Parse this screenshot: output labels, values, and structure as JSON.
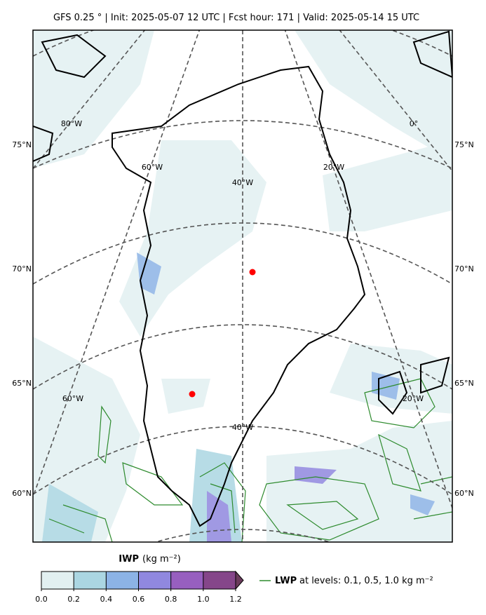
{
  "header": {
    "title": "GFS 0.25 °  |  Init: 2025-05-07 12 UTC  |  Fcst hour: 171  |  Valid: 2025-05-14 15 UTC"
  },
  "map": {
    "lat_labels_left": [
      "75°N",
      "70°N",
      "65°N",
      "60°N"
    ],
    "lat_labels_right": [
      "75°N",
      "70°N",
      "65°N",
      "60°N"
    ],
    "lon_labels": [
      "80°W",
      "60°W",
      "40°W",
      "20°W",
      "0°",
      "60°W",
      "40°W",
      "20°W"
    ]
  },
  "colorbar": {
    "label": "IWP",
    "unit": "(kg m⁻²)",
    "lim": [
      0,
      1.2
    ],
    "ticks": [
      {
        "value": 0,
        "label": "0.0"
      },
      0.2,
      0.4,
      0.6,
      0.8,
      {
        "value": 1,
        "label": "1.0"
      },
      1.2
    ],
    "colors": [
      "#e2f0f1",
      "#abd6e2",
      "#8cb3e6",
      "#9088df",
      "#975fbf",
      "#85468a",
      "#6a3b5c"
    ]
  },
  "legend": {
    "label": "LWP",
    "text": "at levels: 0.1, 0.5, 1.0  kg m⁻²",
    "color": "#2e8b2e"
  }
}
